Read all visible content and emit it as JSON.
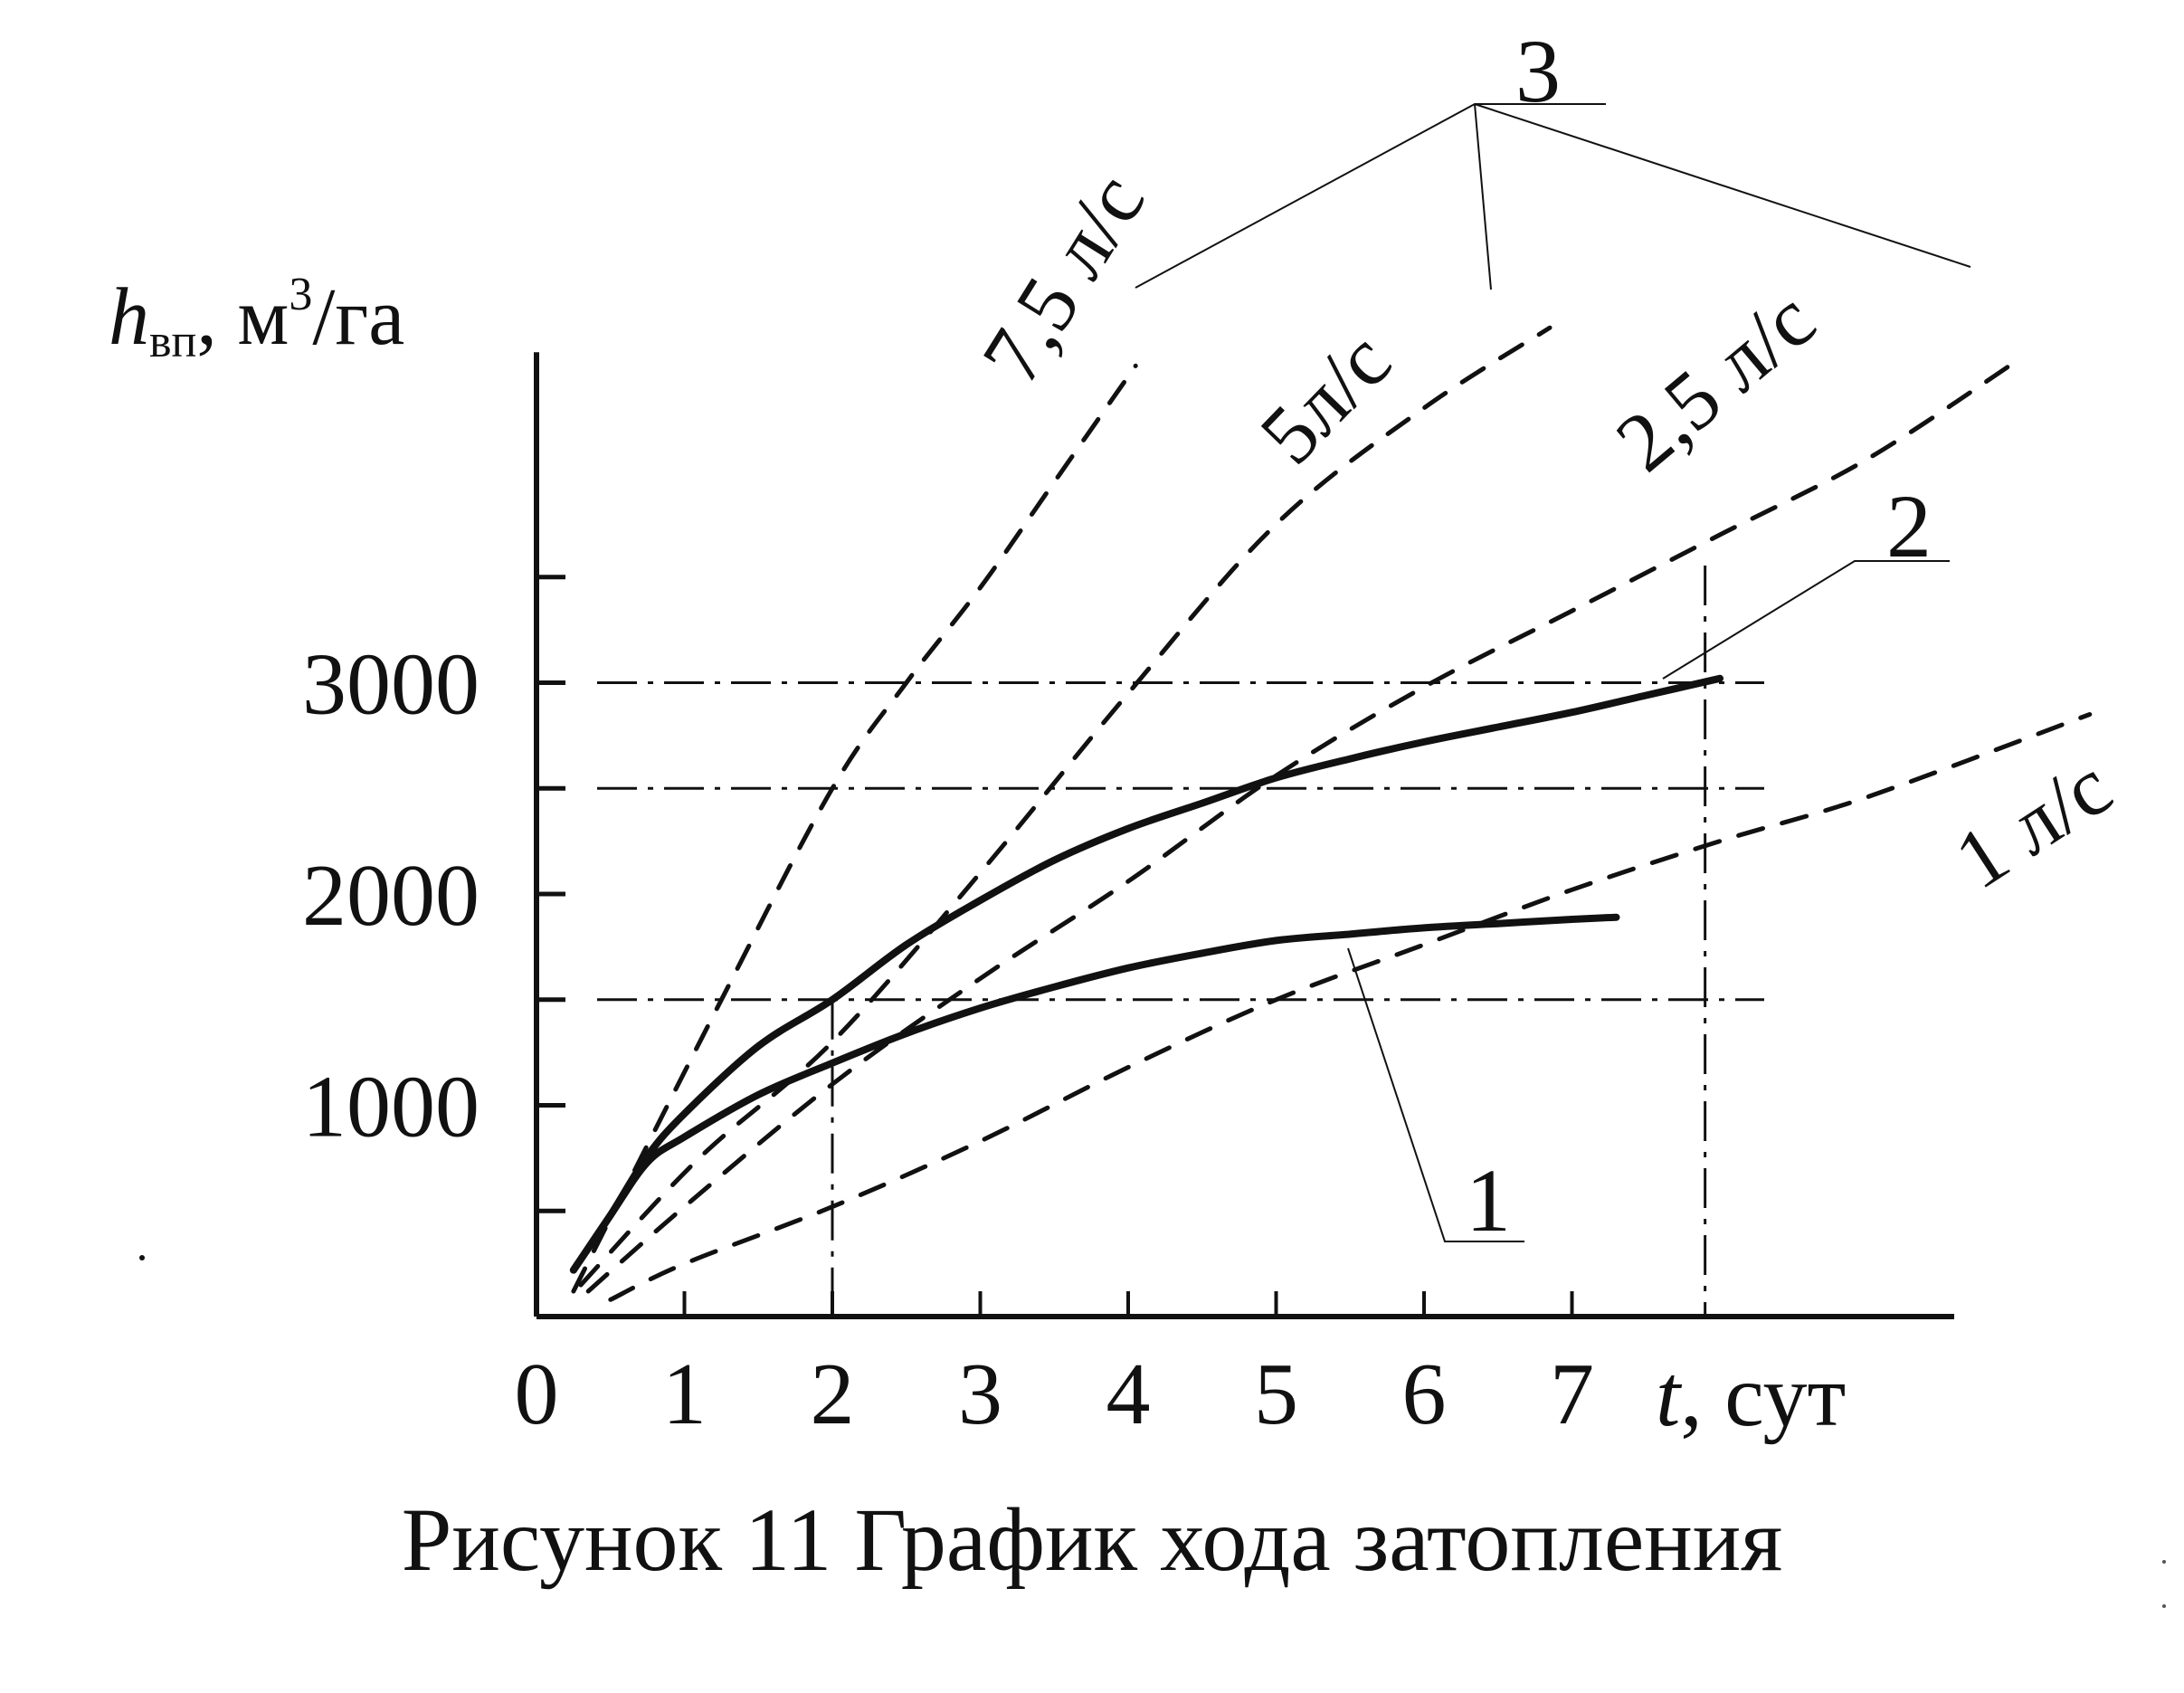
{
  "colors": {
    "ink": "#111111",
    "background": "#ffffff"
  },
  "chart_data": {
    "type": "line",
    "caption": "Рисунок 11 График хода затопления",
    "ylabel": {
      "symbol": "h",
      "subscript": "вп",
      "unit_prefix": ", м",
      "unit_sup": "3",
      "unit_suffix": "/га"
    },
    "xlabel": {
      "symbol": "t",
      "unit": ", сут"
    },
    "xlim": [
      0,
      9.5
    ],
    "ylim": [
      0,
      4650
    ],
    "x_ticks": [
      0,
      1,
      2,
      3,
      4,
      5,
      6,
      7
    ],
    "x_tick_labels": [
      "0",
      "1",
      "2",
      "3",
      "4",
      "5",
      "6",
      "7"
    ],
    "y_tick_values": [
      500,
      1000,
      1500,
      2000,
      2500,
      3000,
      3500
    ],
    "y_tick_labels": [
      {
        "value": 1000,
        "text": "1000"
      },
      {
        "value": 2000,
        "text": "2000"
      },
      {
        "value": 3000,
        "text": "3000"
      }
    ],
    "reference_lines": {
      "horizontal": [
        1500,
        2500,
        3000
      ],
      "vertical": [
        2,
        7.9
      ]
    },
    "series": [
      {
        "name": "1",
        "style": "solid",
        "x": [
          0.25,
          0.5,
          0.75,
          1.0,
          1.5,
          2.0,
          2.5,
          3.0,
          3.5,
          4.0,
          4.5,
          5.0,
          5.5,
          6.0,
          6.5,
          7.0,
          7.3
        ],
        "y": [
          220,
          480,
          730,
          850,
          1050,
          1200,
          1340,
          1460,
          1560,
          1650,
          1720,
          1780,
          1810,
          1840,
          1860,
          1880,
          1890
        ]
      },
      {
        "name": "2",
        "style": "solid",
        "x": [
          0.25,
          0.5,
          0.75,
          1.0,
          1.5,
          2.0,
          2.5,
          3.0,
          3.5,
          4.0,
          4.5,
          5.0,
          5.5,
          6.0,
          6.5,
          7.0,
          7.5,
          8.0
        ],
        "y": [
          220,
          480,
          760,
          960,
          1280,
          1500,
          1760,
          1970,
          2160,
          2310,
          2430,
          2550,
          2640,
          2720,
          2790,
          2860,
          2940,
          3020
        ]
      },
      {
        "name": "7,5 л/с",
        "group_label": "3",
        "style": "dashed",
        "x": [
          0.25,
          1.25,
          2.0,
          2.5,
          3.0,
          3.5,
          4.05
        ],
        "y": [
          120,
          1500,
          2500,
          3000,
          3450,
          3950,
          4500
        ]
      },
      {
        "name": "5л/с",
        "group_label": "3",
        "style": "dashed",
        "x": [
          0.3,
          1.1,
          2.0,
          3.0,
          4.0,
          5.0,
          6.0,
          6.85
        ],
        "y": [
          150,
          750,
          1300,
          2100,
          2950,
          3750,
          4300,
          4680
        ]
      },
      {
        "name": "2,5 л/с",
        "group_label": "3",
        "style": "dashed",
        "x": [
          0.35,
          1.0,
          2.0,
          3.0,
          4.0,
          5.0,
          6.0,
          7.0,
          8.0,
          9.0,
          10.0
        ],
        "y": [
          120,
          520,
          1100,
          1600,
          2060,
          2560,
          2980,
          3340,
          3700,
          4060,
          4520
        ]
      },
      {
        "name": "1 л/с",
        "style": "dashed",
        "x": [
          0.5,
          1.0,
          2.0,
          3.0,
          4.0,
          5.0,
          6.0,
          7.0,
          8.0,
          9.0,
          10.5
        ],
        "y": [
          80,
          250,
          520,
          830,
          1180,
          1500,
          1760,
          2020,
          2250,
          2460,
          2850
        ]
      }
    ],
    "series_labels": [
      "7,5 л/с",
      "5л/с",
      "2,5 л/с",
      "1 л/с"
    ],
    "callouts": [
      {
        "text": "1",
        "points_to": "series 1"
      },
      {
        "text": "2",
        "points_to": "series 2"
      },
      {
        "text": "3",
        "points_to": "dashed lines 7,5 / 5 / 2,5 л/с"
      }
    ]
  }
}
